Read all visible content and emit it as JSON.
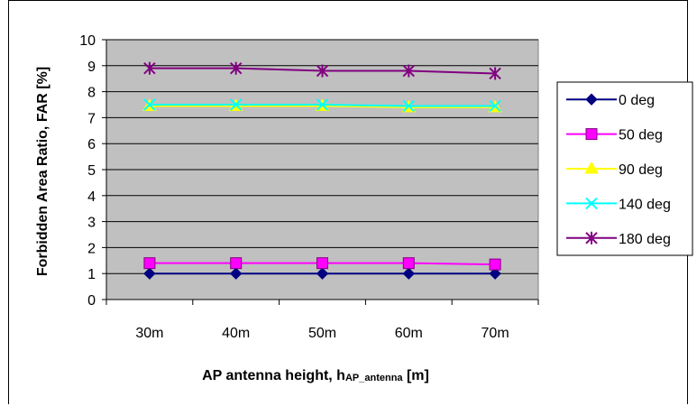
{
  "chart_data": {
    "type": "line",
    "categories": [
      "30m",
      "40m",
      "50m",
      "60m",
      "70m"
    ],
    "ylim": [
      0,
      10
    ],
    "yticks": [
      0,
      1,
      2,
      3,
      4,
      5,
      6,
      7,
      8,
      9,
      10
    ],
    "ylabel": "Forbidden Area Ratio, FAR [%]",
    "xlabel_main": "AP antenna height, h",
    "xlabel_sub": "AP_antenna",
    "xlabel_unit": " [m]",
    "grid": true,
    "plot_background": "#c0c0c0",
    "legend_position": "right",
    "series": [
      {
        "name": "0 deg",
        "values": [
          1.0,
          1.0,
          1.0,
          1.0,
          1.0
        ],
        "color": "#000080",
        "marker": "diamond"
      },
      {
        "name": "50 deg",
        "values": [
          1.4,
          1.4,
          1.4,
          1.4,
          1.35
        ],
        "color": "#ff00ff",
        "marker": "square"
      },
      {
        "name": "90 deg",
        "values": [
          7.45,
          7.45,
          7.45,
          7.4,
          7.4
        ],
        "color": "#ffff00",
        "marker": "triangle"
      },
      {
        "name": "140 deg",
        "values": [
          7.5,
          7.5,
          7.5,
          7.45,
          7.45
        ],
        "color": "#00ffff",
        "marker": "x"
      },
      {
        "name": "180 deg",
        "values": [
          8.9,
          8.9,
          8.8,
          8.8,
          8.7
        ],
        "color": "#800080",
        "marker": "star"
      }
    ]
  }
}
